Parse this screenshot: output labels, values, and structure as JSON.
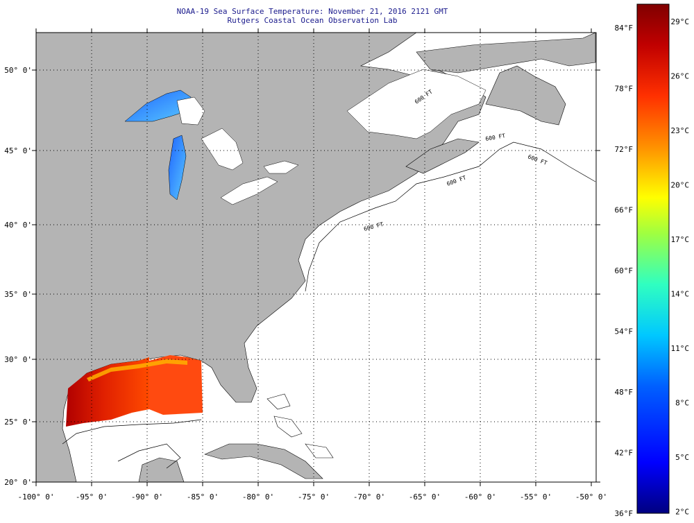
{
  "header": {
    "title": "NOAA-19 Sea Surface Temperature:  November 21, 2016 2121 GMT",
    "subtitle": "Rutgers Coastal Ocean Observation Lab"
  },
  "map": {
    "lon_range": [
      -100,
      -50
    ],
    "lat_range": [
      20,
      52
    ],
    "lon_ticks": [
      "-100° 0'",
      "-95° 0'",
      "-90° 0'",
      "-85° 0'",
      "-80° 0'",
      "-75° 0'",
      "-70° 0'",
      "-65° 0'",
      "-60° 0'",
      "-55° 0'",
      "-50° 0'"
    ],
    "lat_ticks": [
      "50° 0'",
      "45° 0'",
      "40° 0'",
      "35° 0'",
      "30° 0'",
      "25° 0'",
      "20° 0'"
    ],
    "isobath_labels": [
      "600 FT",
      "600 FT",
      "600 FT",
      "600 FT",
      "600 FT"
    ],
    "land_color": "#b4b4b4",
    "no_data_color": "#ffffff"
  },
  "colorbar": {
    "fahrenheit_labels": [
      "84°F",
      "78°F",
      "72°F",
      "66°F",
      "60°F",
      "54°F",
      "48°F",
      "42°F",
      "36°F"
    ],
    "celsius_labels": [
      "29°C",
      "26°C",
      "23°C",
      "20°C",
      "17°C",
      "14°C",
      "11°C",
      "8°C",
      "5°C",
      "2°C"
    ],
    "colors": [
      "#7f0000",
      "#c00000",
      "#ff2000",
      "#ff8000",
      "#ffe000",
      "#c0ff30",
      "#40ff90",
      "#00e0ff",
      "#0080ff",
      "#0020ff",
      "#000090"
    ]
  }
}
